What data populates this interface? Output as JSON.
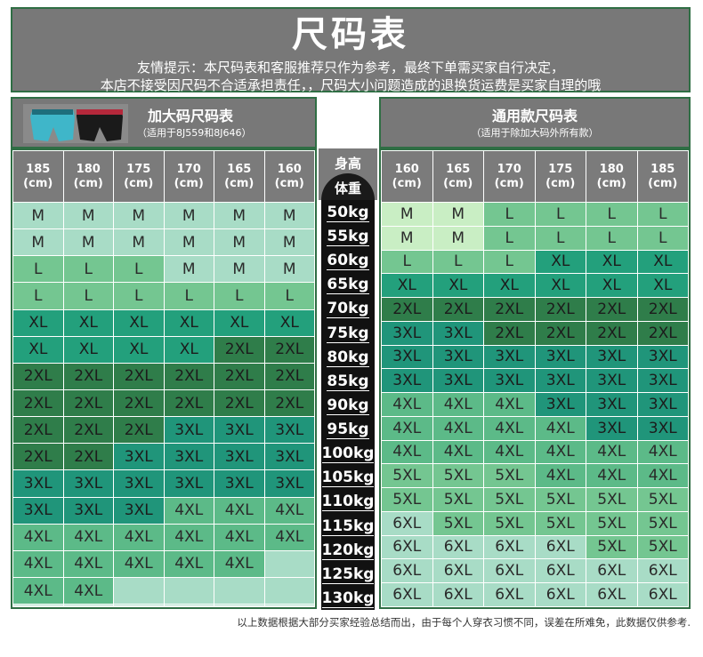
{
  "header": {
    "title": "尺码表",
    "line1": "友情提示：本尺码表和客服推荐只作为参考，最终下单需买家自行决定，",
    "line2": "本店不接受因尺码不合适承担责任，，尺码大小问题造成的退换货运费是买家自理的哦"
  },
  "left_panel": {
    "title": "加大码尺码表",
    "subtitle": "（适用于8J559和8J646）",
    "heights": [
      "185\n(cm)",
      "180\n(cm)",
      "175\n(cm)",
      "170\n(cm)",
      "165\n(cm)",
      "160\n(cm)"
    ]
  },
  "right_panel": {
    "title": "通用款尺码表",
    "subtitle": "（适用于除加大码外所有款）",
    "heights": [
      "160\n(cm)",
      "165\n(cm)",
      "170\n(cm)",
      "175\n(cm)",
      "180\n(cm)",
      "185\n(cm)"
    ]
  },
  "middle": {
    "height_label": "身高",
    "weight_label": "体重",
    "weights": [
      "50kg",
      "55kg",
      "60kg",
      "65kg",
      "70kg",
      "75kg",
      "80kg",
      "85kg",
      "90kg",
      "95kg",
      "100kg",
      "105kg",
      "110kg",
      "115kg",
      "120kg",
      "125kg",
      "130kg"
    ]
  },
  "colors": {
    "M": "#a8dcc6",
    "L": "#74c691",
    "XL": "#23a07c",
    "2XL": "#2f7d4a",
    "3XL": "#20957a",
    "4XL": "#5cba88",
    "5XL": "#74c691",
    "6XL": "#a8dcc6",
    "blank": "#a8dcc6",
    "lightM": "#c9eec4"
  },
  "left_rows": [
    [
      "M",
      "M",
      "M",
      "M",
      "M",
      "M"
    ],
    [
      "M",
      "M",
      "M",
      "M",
      "M",
      "M"
    ],
    [
      "L",
      "L",
      "L",
      "M",
      "M",
      "M"
    ],
    [
      "L",
      "L",
      "L",
      "L",
      "L",
      "L"
    ],
    [
      "XL",
      "XL",
      "XL",
      "XL",
      "XL",
      "XL"
    ],
    [
      "XL",
      "XL",
      "XL",
      "XL",
      "2XL",
      "2XL"
    ],
    [
      "2XL",
      "2XL",
      "2XL",
      "2XL",
      "2XL",
      "2XL"
    ],
    [
      "2XL",
      "2XL",
      "2XL",
      "2XL",
      "2XL",
      "2XL"
    ],
    [
      "2XL",
      "2XL",
      "2XL",
      "3XL",
      "3XL",
      "3XL"
    ],
    [
      "2XL",
      "2XL",
      "3XL",
      "3XL",
      "3XL",
      "3XL"
    ],
    [
      "3XL",
      "3XL",
      "3XL",
      "3XL",
      "3XL",
      "3XL"
    ],
    [
      "3XL",
      "3XL",
      "3XL",
      "4XL",
      "4XL",
      "4XL"
    ],
    [
      "4XL",
      "4XL",
      "4XL",
      "4XL",
      "4XL",
      "4XL"
    ],
    [
      "4XL",
      "4XL",
      "4XL",
      "4XL",
      "4XL",
      ""
    ],
    [
      "4XL",
      "4XL",
      "",
      "",
      "",
      ""
    ],
    [
      "",
      "",
      "",
      "",
      "",
      ""
    ],
    [
      "",
      "",
      "",
      "",
      "",
      ""
    ]
  ],
  "right_rows": [
    [
      "M",
      "M",
      "L",
      "L",
      "L",
      "L"
    ],
    [
      "M",
      "M",
      "L",
      "L",
      "L",
      "L"
    ],
    [
      "L",
      "L",
      "L",
      "XL",
      "XL",
      "XL"
    ],
    [
      "XL",
      "XL",
      "XL",
      "XL",
      "XL",
      "XL"
    ],
    [
      "2XL",
      "2XL",
      "2XL",
      "2XL",
      "2XL",
      "2XL"
    ],
    [
      "3XL",
      "3XL",
      "2XL",
      "2XL",
      "2XL",
      "2XL"
    ],
    [
      "3XL",
      "3XL",
      "3XL",
      "3XL",
      "3XL",
      "3XL"
    ],
    [
      "3XL",
      "3XL",
      "3XL",
      "3XL",
      "3XL",
      "3XL"
    ],
    [
      "4XL",
      "4XL",
      "4XL",
      "3XL",
      "3XL",
      "3XL"
    ],
    [
      "4XL",
      "4XL",
      "4XL",
      "4XL",
      "3XL",
      "3XL"
    ],
    [
      "4XL",
      "4XL",
      "4XL",
      "4XL",
      "4XL",
      "4XL"
    ],
    [
      "5XL",
      "5XL",
      "5XL",
      "4XL",
      "4XL",
      "4XL"
    ],
    [
      "5XL",
      "5XL",
      "5XL",
      "5XL",
      "5XL",
      "5XL"
    ],
    [
      "6XL",
      "5XL",
      "5XL",
      "5XL",
      "5XL",
      "5XL"
    ],
    [
      "6XL",
      "6XL",
      "6XL",
      "6XL",
      "5XL",
      "5XL"
    ],
    [
      "6XL",
      "6XL",
      "6XL",
      "6XL",
      "6XL",
      "6XL"
    ],
    [
      "6XL",
      "6XL",
      "6XL",
      "6XL",
      "6XL",
      "6XL"
    ]
  ],
  "footer": "以上数据根据大部分买家经验总结而出，由于每个人穿衣习惯不同，误差在所难免，此数据仅供参考."
}
